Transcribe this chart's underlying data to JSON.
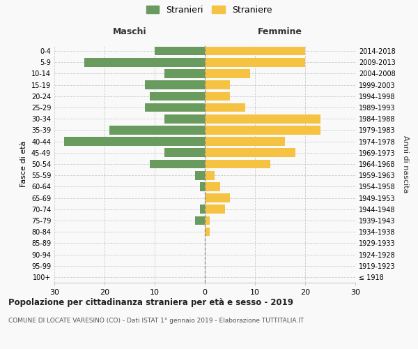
{
  "age_groups": [
    "100+",
    "95-99",
    "90-94",
    "85-89",
    "80-84",
    "75-79",
    "70-74",
    "65-69",
    "60-64",
    "55-59",
    "50-54",
    "45-49",
    "40-44",
    "35-39",
    "30-34",
    "25-29",
    "20-24",
    "15-19",
    "10-14",
    "5-9",
    "0-4"
  ],
  "birth_years": [
    "≤ 1918",
    "1919-1923",
    "1924-1928",
    "1929-1933",
    "1934-1938",
    "1939-1943",
    "1944-1948",
    "1949-1953",
    "1954-1958",
    "1959-1963",
    "1964-1968",
    "1969-1973",
    "1974-1978",
    "1979-1983",
    "1984-1988",
    "1989-1993",
    "1994-1998",
    "1999-2003",
    "2004-2008",
    "2009-2013",
    "2014-2018"
  ],
  "males": [
    0,
    0,
    0,
    0,
    0,
    2,
    1,
    0,
    1,
    2,
    11,
    8,
    28,
    19,
    8,
    12,
    11,
    12,
    8,
    24,
    10
  ],
  "females": [
    0,
    0,
    0,
    0,
    1,
    1,
    4,
    5,
    3,
    2,
    13,
    18,
    16,
    23,
    23,
    8,
    5,
    5,
    9,
    20,
    20
  ],
  "male_color": "#6a9b5e",
  "female_color": "#f5c242",
  "background_color": "#f9f9f9",
  "grid_color": "#cccccc",
  "title": "Popolazione per cittadinanza straniera per età e sesso - 2019",
  "subtitle": "COMUNE DI LOCATE VARESINO (CO) - Dati ISTAT 1° gennaio 2019 - Elaborazione TUTTITALIA.IT",
  "ylabel_left": "Fasce di età",
  "ylabel_right": "Anni di nascita",
  "legend_male": "Stranieri",
  "legend_female": "Straniere",
  "xlim": 30,
  "maschi_label": "Maschi",
  "femmine_label": "Femmine"
}
